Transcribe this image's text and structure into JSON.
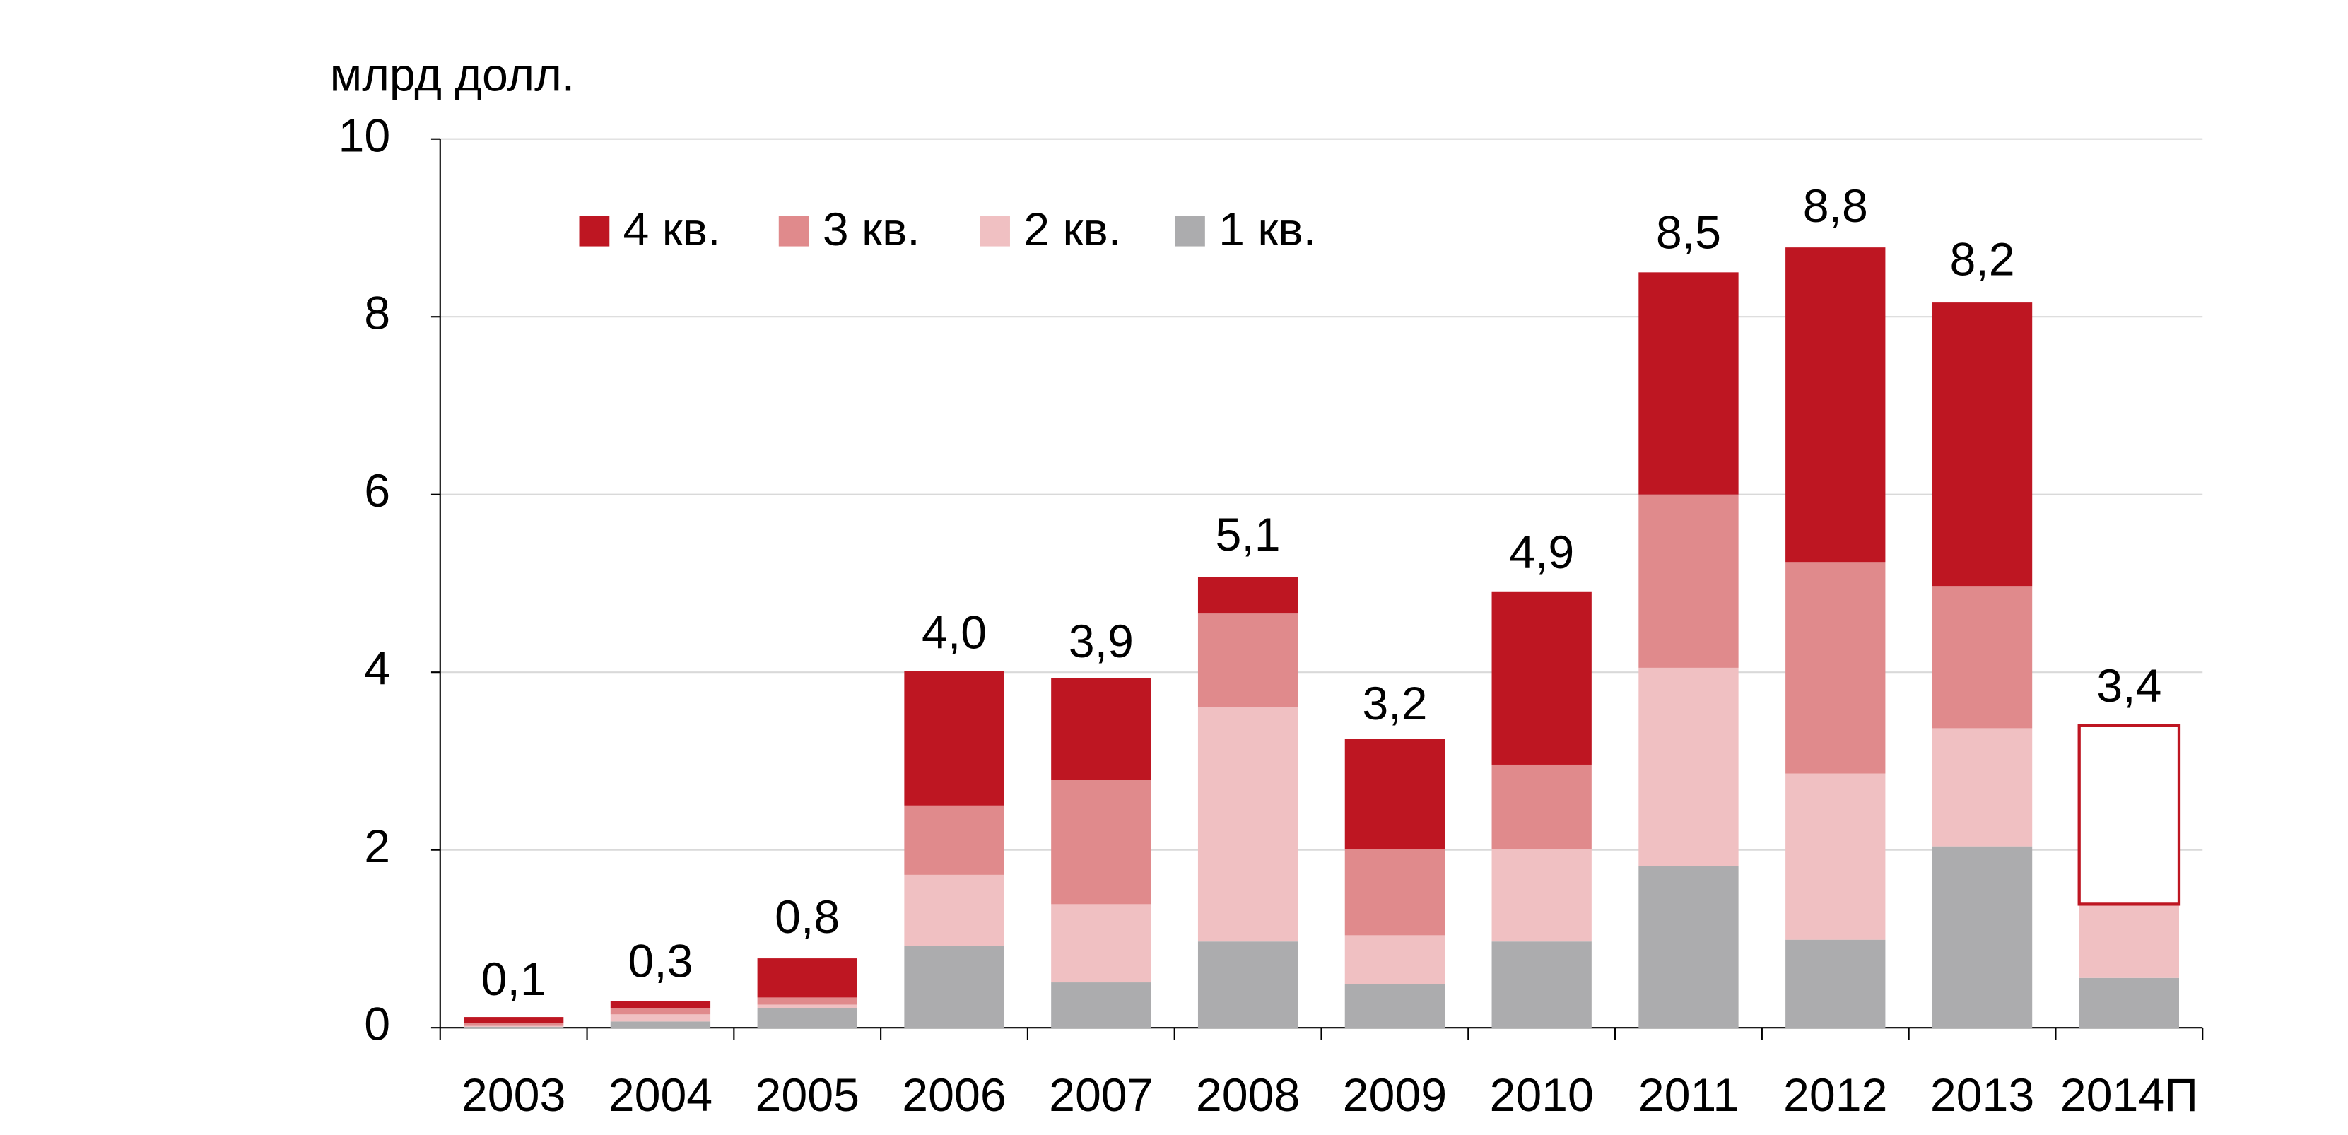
{
  "chart_data": {
    "type": "stacked_bar",
    "y_axis_label": "млрд долл.",
    "categories": [
      "2003",
      "2004",
      "2005",
      "2006",
      "2007",
      "2008",
      "2009",
      "2010",
      "2011",
      "2012",
      "2013",
      "2014П"
    ],
    "series": [
      {
        "name": "4 кв.",
        "color": "#be1622",
        "values": [
          0.07,
          0.08,
          0.44,
          1.51,
          1.14,
          0.41,
          1.24,
          1.95,
          2.5,
          3.54,
          3.19,
          2.01
        ],
        "outlined_index": 11
      },
      {
        "name": "3 кв.",
        "color": "#e08a8c",
        "values": [
          0.03,
          0.07,
          0.08,
          0.78,
          1.4,
          1.05,
          0.97,
          0.95,
          1.95,
          2.38,
          1.6,
          null
        ]
      },
      {
        "name": "2 кв.",
        "color": "#f0c0c2",
        "values": [
          0.01,
          0.08,
          0.04,
          0.8,
          0.88,
          2.64,
          0.55,
          1.04,
          2.23,
          1.87,
          1.33,
          0.83
        ]
      },
      {
        "name": "1 кв.",
        "color": "#acacae",
        "values": [
          0.01,
          0.07,
          0.22,
          0.92,
          0.51,
          0.97,
          0.49,
          0.97,
          1.82,
          0.99,
          2.04,
          0.56
        ]
      }
    ],
    "totals": [
      0.1,
      0.3,
      0.8,
      4.0,
      3.9,
      5.1,
      3.2,
      4.9,
      8.5,
      8.8,
      8.2,
      3.4
    ],
    "total_labels": [
      "0,1",
      "0,3",
      "0,8",
      "4,0",
      "3,9",
      "5,1",
      "3,2",
      "4,9",
      "8,5",
      "8,8",
      "8,2",
      "3,4"
    ],
    "ylim": [
      0,
      10
    ],
    "yticks": [
      0,
      2,
      4,
      6,
      8,
      10
    ],
    "grid": true
  }
}
